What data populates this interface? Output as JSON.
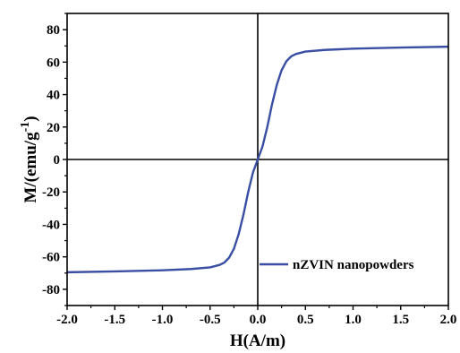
{
  "chart_data": {
    "type": "line",
    "title": "",
    "xlabel": "H(A/m)",
    "ylabel_main": "M/(emu/g",
    "ylabel_sup": "-1",
    "ylabel_close": ")",
    "xlim": [
      -2.0,
      2.0
    ],
    "ylim": [
      -90,
      90
    ],
    "x_ticks": [
      -2.0,
      -1.5,
      -1.0,
      -0.5,
      0.0,
      0.5,
      1.0,
      1.5,
      2.0
    ],
    "x_tick_labels": [
      "-2.0",
      "-1.5",
      "-1.0",
      "-0.5",
      "0.0",
      "0.5",
      "1.0",
      "1.5",
      "2.0"
    ],
    "y_ticks": [
      -80,
      -60,
      -40,
      -20,
      0,
      20,
      40,
      60,
      80
    ],
    "y_tick_labels": [
      "-80",
      "-60",
      "-40",
      "-20",
      "0",
      "20",
      "40",
      "60",
      "80"
    ],
    "zero_lines": true,
    "grid": false,
    "legend_position": "bottom-right",
    "series": [
      {
        "name": "nZVIN nanopowders",
        "color": "#3a4fa3",
        "x": [
          -2.0,
          -1.5,
          -1.0,
          -0.7,
          -0.5,
          -0.4,
          -0.35,
          -0.3,
          -0.25,
          -0.2,
          -0.15,
          -0.1,
          -0.05,
          0.0,
          0.05,
          0.1,
          0.15,
          0.2,
          0.25,
          0.3,
          0.35,
          0.4,
          0.5,
          0.7,
          1.0,
          1.5,
          2.0
        ],
        "y": [
          -69.5,
          -69.0,
          -68.3,
          -67.5,
          -66.5,
          -65.0,
          -63.5,
          -60.5,
          -55.0,
          -46.0,
          -34.0,
          -20.0,
          -8.0,
          0.0,
          8.0,
          20.0,
          34.0,
          46.0,
          55.0,
          60.5,
          63.5,
          65.0,
          66.5,
          67.5,
          68.3,
          69.0,
          69.5
        ]
      }
    ]
  }
}
